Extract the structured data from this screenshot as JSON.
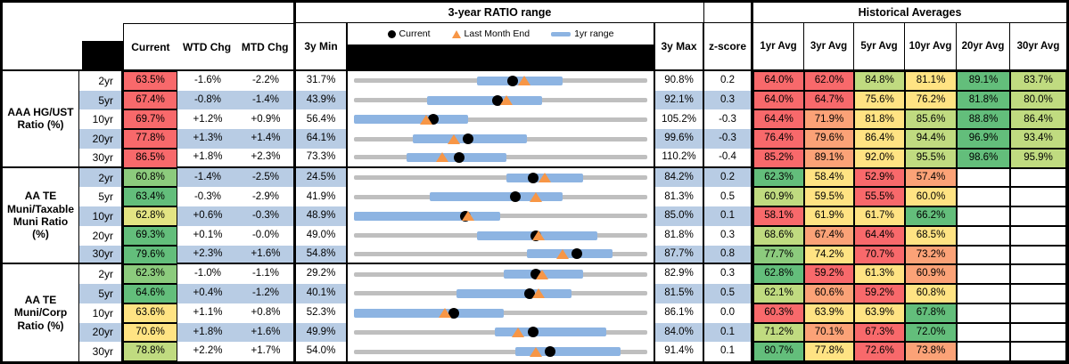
{
  "palette": {
    "r": "#F8696B",
    "o": "#FBA277",
    "y": "#FFE383",
    "yg": "#C0DB80",
    "lg": "#8CCB7D",
    "g": "#63BE7B",
    "pyg": "#E3E483",
    "stripe_blue": "#B8CCE4",
    "range_bar_blue": "#8DB4E2",
    "track_gray": "#BFBFBF",
    "marker_orange": "#F79646",
    "marker_black": "#000000"
  },
  "header": {
    "range_title": "3-year RATIO range",
    "hist_title": "Historical Averages",
    "cols": {
      "current": "Current",
      "wtd": "WTD Chg",
      "mtd": "MTD Chg",
      "min": "3y Min",
      "max": "3y Max",
      "z": "z-score"
    },
    "avg_cols": [
      "1yr Avg",
      "3yr Avg",
      "5yr Avg",
      "10yr Avg",
      "20yr Avg",
      "30yr Avg"
    ],
    "legend": {
      "current": "Current",
      "last_month": "Last Month End",
      "range": "1yr range"
    }
  },
  "groups": [
    {
      "label": "AAA HG/UST\nRatio (%)",
      "rows": [
        {
          "tenor": "2yr",
          "current": "63.5%",
          "current_color": "r",
          "wtd": "-1.6%",
          "mtd": "-2.2%",
          "min": "31.7%",
          "max": "90.8%",
          "z": "0.2",
          "range_bar": [
            42,
            71
          ],
          "dot": 54,
          "tri": 58,
          "avgs": [
            {
              "v": "64.0%",
              "c": "r"
            },
            {
              "v": "62.0%",
              "c": "r"
            },
            {
              "v": "84.8%",
              "c": "yg"
            },
            {
              "v": "81.1%",
              "c": "y"
            },
            {
              "v": "89.1%",
              "c": "g"
            },
            {
              "v": "83.7%",
              "c": "yg"
            }
          ]
        },
        {
          "tenor": "5yr",
          "current": "67.4%",
          "current_color": "r",
          "wtd": "-0.8%",
          "mtd": "-1.4%",
          "min": "43.9%",
          "max": "92.1%",
          "z": "0.3",
          "range_bar": [
            25,
            64
          ],
          "dot": 49,
          "tri": 52,
          "avgs": [
            {
              "v": "64.0%",
              "c": "r"
            },
            {
              "v": "64.7%",
              "c": "r"
            },
            {
              "v": "75.6%",
              "c": "y"
            },
            {
              "v": "76.2%",
              "c": "y"
            },
            {
              "v": "81.8%",
              "c": "g"
            },
            {
              "v": "80.0%",
              "c": "yg"
            }
          ]
        },
        {
          "tenor": "10yr",
          "current": "69.7%",
          "current_color": "r",
          "wtd": "+1.2%",
          "mtd": "+0.9%",
          "min": "56.4%",
          "max": "105.2%",
          "z": "-0.3",
          "range_bar": [
            0,
            39
          ],
          "dot": 27,
          "tri": 24.5,
          "avgs": [
            {
              "v": "64.4%",
              "c": "r"
            },
            {
              "v": "71.9%",
              "c": "o"
            },
            {
              "v": "81.8%",
              "c": "y"
            },
            {
              "v": "85.6%",
              "c": "yg"
            },
            {
              "v": "88.8%",
              "c": "g"
            },
            {
              "v": "86.4%",
              "c": "yg"
            }
          ]
        },
        {
          "tenor": "20yr",
          "current": "77.8%",
          "current_color": "r",
          "wtd": "+1.3%",
          "mtd": "+1.4%",
          "min": "64.1%",
          "max": "99.6%",
          "z": "-0.3",
          "range_bar": [
            20,
            59
          ],
          "dot": 39,
          "tri": 34,
          "avgs": [
            {
              "v": "76.4%",
              "c": "r"
            },
            {
              "v": "79.6%",
              "c": "o"
            },
            {
              "v": "86.4%",
              "c": "y"
            },
            {
              "v": "94.4%",
              "c": "yg"
            },
            {
              "v": "96.9%",
              "c": "g"
            },
            {
              "v": "93.4%",
              "c": "yg"
            }
          ]
        },
        {
          "tenor": "30yr",
          "current": "86.5%",
          "current_color": "r",
          "wtd": "+1.8%",
          "mtd": "+2.3%",
          "min": "73.3%",
          "max": "110.2%",
          "z": "-0.4",
          "range_bar": [
            18,
            52
          ],
          "dot": 36,
          "tri": 30,
          "avgs": [
            {
              "v": "85.2%",
              "c": "r"
            },
            {
              "v": "89.1%",
              "c": "o"
            },
            {
              "v": "92.0%",
              "c": "y"
            },
            {
              "v": "95.5%",
              "c": "yg"
            },
            {
              "v": "98.6%",
              "c": "g"
            },
            {
              "v": "95.9%",
              "c": "yg"
            }
          ]
        }
      ]
    },
    {
      "label": "AA TE\nMuni/Taxable\nMuni Ratio\n(%)",
      "rows": [
        {
          "tenor": "2yr",
          "current": "60.8%",
          "current_color": "lg",
          "wtd": "-1.4%",
          "mtd": "-2.5%",
          "min": "24.5%",
          "max": "84.2%",
          "z": "0.2",
          "range_bar": [
            52,
            78
          ],
          "dot": 61,
          "tri": 65,
          "avgs": [
            {
              "v": "62.3%",
              "c": "g"
            },
            {
              "v": "58.4%",
              "c": "y"
            },
            {
              "v": "52.9%",
              "c": "r"
            },
            {
              "v": "57.4%",
              "c": "o"
            }
          ]
        },
        {
          "tenor": "5yr",
          "current": "63.4%",
          "current_color": "g",
          "wtd": "-0.3%",
          "mtd": "-2.9%",
          "min": "41.9%",
          "max": "81.3%",
          "z": "0.5",
          "range_bar": [
            26,
            71
          ],
          "dot": 55,
          "tri": 62,
          "avgs": [
            {
              "v": "60.9%",
              "c": "yg"
            },
            {
              "v": "59.5%",
              "c": "y"
            },
            {
              "v": "55.5%",
              "c": "r"
            },
            {
              "v": "60.0%",
              "c": "y"
            }
          ]
        },
        {
          "tenor": "10yr",
          "current": "62.8%",
          "current_color": "pyg",
          "wtd": "+0.6%",
          "mtd": "-0.3%",
          "min": "48.9%",
          "max": "85.0%",
          "z": "0.1",
          "range_bar": [
            0,
            50
          ],
          "dot": 38,
          "tri": 39,
          "avgs": [
            {
              "v": "58.1%",
              "c": "r"
            },
            {
              "v": "61.9%",
              "c": "y"
            },
            {
              "v": "61.7%",
              "c": "y"
            },
            {
              "v": "66.2%",
              "c": "g"
            }
          ]
        },
        {
          "tenor": "20yr",
          "current": "69.3%",
          "current_color": "g",
          "wtd": "+0.1%",
          "mtd": "-0.0%",
          "min": "49.0%",
          "max": "81.8%",
          "z": "0.3",
          "range_bar": [
            42,
            83
          ],
          "dot": 62,
          "tri": 63,
          "avgs": [
            {
              "v": "68.6%",
              "c": "yg"
            },
            {
              "v": "67.4%",
              "c": "o"
            },
            {
              "v": "64.4%",
              "c": "r"
            },
            {
              "v": "68.5%",
              "c": "y"
            }
          ]
        },
        {
          "tenor": "30yr",
          "current": "79.6%",
          "current_color": "g",
          "wtd": "+2.3%",
          "mtd": "+1.6%",
          "min": "54.8%",
          "max": "87.7%",
          "z": "0.8",
          "range_bar": [
            59,
            88
          ],
          "dot": 76,
          "tri": 71,
          "avgs": [
            {
              "v": "77.7%",
              "c": "lg"
            },
            {
              "v": "74.2%",
              "c": "y"
            },
            {
              "v": "70.7%",
              "c": "r"
            },
            {
              "v": "73.2%",
              "c": "o"
            }
          ]
        }
      ]
    },
    {
      "label": "AA TE\nMuni/Corp\nRatio (%)",
      "rows": [
        {
          "tenor": "2yr",
          "current": "62.3%",
          "current_color": "lg",
          "wtd": "-1.0%",
          "mtd": "-1.1%",
          "min": "29.2%",
          "max": "82.9%",
          "z": "0.3",
          "range_bar": [
            51,
            78
          ],
          "dot": 62,
          "tri": 64,
          "avgs": [
            {
              "v": "62.8%",
              "c": "g"
            },
            {
              "v": "59.2%",
              "c": "r"
            },
            {
              "v": "61.3%",
              "c": "y"
            },
            {
              "v": "60.9%",
              "c": "o"
            }
          ]
        },
        {
          "tenor": "5yr",
          "current": "64.6%",
          "current_color": "g",
          "wtd": "+0.4%",
          "mtd": "-1.2%",
          "min": "40.1%",
          "max": "81.5%",
          "z": "0.5",
          "range_bar": [
            35,
            74
          ],
          "dot": 60,
          "tri": 63,
          "avgs": [
            {
              "v": "62.1%",
              "c": "yg"
            },
            {
              "v": "60.6%",
              "c": "o"
            },
            {
              "v": "59.2%",
              "c": "r"
            },
            {
              "v": "60.8%",
              "c": "y"
            }
          ]
        },
        {
          "tenor": "10yr",
          "current": "63.6%",
          "current_color": "y",
          "wtd": "+1.1%",
          "mtd": "+0.8%",
          "min": "52.3%",
          "max": "86.1%",
          "z": "0.0",
          "range_bar": [
            0,
            51
          ],
          "dot": 34,
          "tri": 31,
          "avgs": [
            {
              "v": "60.3%",
              "c": "r"
            },
            {
              "v": "63.9%",
              "c": "y"
            },
            {
              "v": "63.9%",
              "c": "y"
            },
            {
              "v": "67.8%",
              "c": "g"
            }
          ]
        },
        {
          "tenor": "20yr",
          "current": "70.6%",
          "current_color": "y",
          "wtd": "+1.8%",
          "mtd": "+1.6%",
          "min": "49.9%",
          "max": "84.0%",
          "z": "0.1",
          "range_bar": [
            48,
            86
          ],
          "dot": 61,
          "tri": 56,
          "avgs": [
            {
              "v": "71.2%",
              "c": "yg"
            },
            {
              "v": "70.1%",
              "c": "o"
            },
            {
              "v": "67.3%",
              "c": "r"
            },
            {
              "v": "72.0%",
              "c": "g"
            }
          ]
        },
        {
          "tenor": "30yr",
          "current": "78.8%",
          "current_color": "yg",
          "wtd": "+2.2%",
          "mtd": "+1.7%",
          "min": "54.0%",
          "max": "91.4%",
          "z": "0.1",
          "range_bar": [
            55,
            91
          ],
          "dot": 67,
          "tri": 62,
          "avgs": [
            {
              "v": "80.7%",
              "c": "g"
            },
            {
              "v": "77.8%",
              "c": "y"
            },
            {
              "v": "72.6%",
              "c": "r"
            },
            {
              "v": "73.8%",
              "c": "o"
            }
          ]
        }
      ]
    }
  ]
}
